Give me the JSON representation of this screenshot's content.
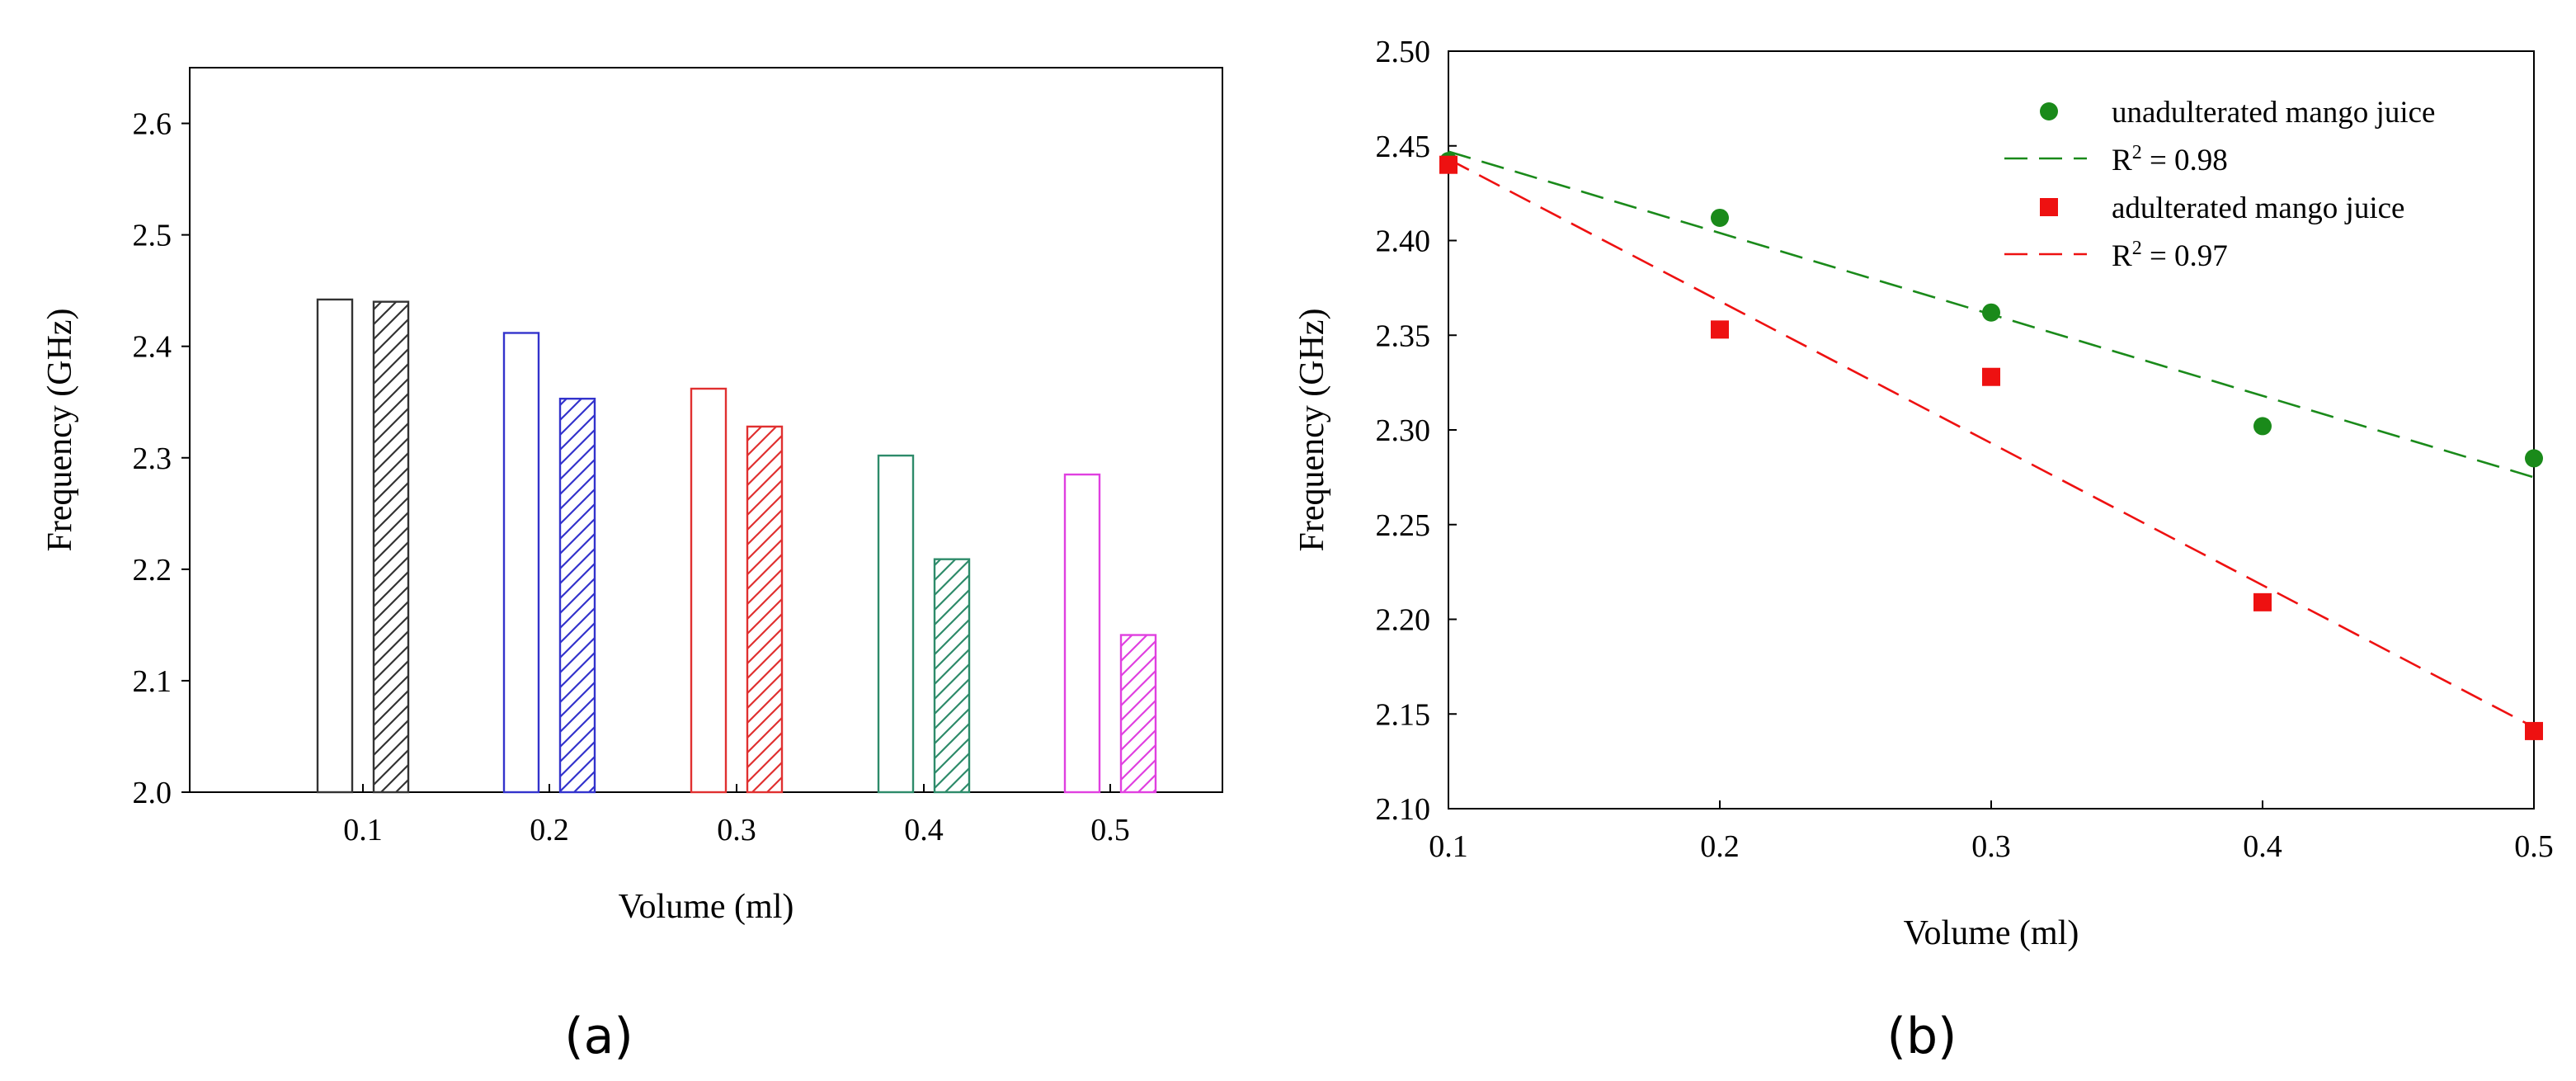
{
  "chart_data": [
    {
      "type": "bar",
      "panel_label": "(a)",
      "categories": [
        "0.1",
        "0.2",
        "0.3",
        "0.4",
        "0.5"
      ],
      "series": [
        {
          "name": "unadulterated",
          "fill": "hollow",
          "values": [
            2.442,
            2.412,
            2.362,
            2.302,
            2.285
          ]
        },
        {
          "name": "adulterated",
          "fill": "hatched",
          "values": [
            2.44,
            2.353,
            2.328,
            2.209,
            2.141
          ]
        }
      ],
      "colors": [
        "#333333",
        "#3333cc",
        "#e03030",
        "#2e8b6a",
        "#e040e0"
      ],
      "xlabel": "Volume (ml)",
      "ylabel": "Frequency (GHz)",
      "ylim": [
        2.0,
        2.65
      ],
      "yticks": [
        "2.0",
        "2.1",
        "2.2",
        "2.3",
        "2.4",
        "2.5",
        "2.6"
      ]
    },
    {
      "type": "scatter",
      "panel_label": "(b)",
      "xlabel": "Volume (ml)",
      "ylabel": "Frequency (GHz)",
      "xlim": [
        0.1,
        0.5
      ],
      "ylim": [
        2.1,
        2.5
      ],
      "xticks": [
        "0.1",
        "0.2",
        "0.3",
        "0.4",
        "0.5"
      ],
      "yticks": [
        "2.10",
        "2.15",
        "2.20",
        "2.25",
        "2.30",
        "2.35",
        "2.40",
        "2.45",
        "2.50"
      ],
      "series": [
        {
          "name": "unadulterated mango juice",
          "marker": "circle",
          "color": "#1a8a1a",
          "x": [
            0.1,
            0.2,
            0.3,
            0.4,
            0.5
          ],
          "y": [
            2.442,
            2.412,
            2.362,
            2.302,
            2.285
          ],
          "fit_label": "R",
          "fit_exp": "2",
          "fit_value": " = 0.98",
          "fit": [
            [
              0.1,
              2.447
            ],
            [
              0.5,
              2.275
            ]
          ]
        },
        {
          "name": "adulterated mango juice",
          "marker": "square",
          "color": "#ee1111",
          "x": [
            0.1,
            0.2,
            0.3,
            0.4,
            0.5
          ],
          "y": [
            2.44,
            2.353,
            2.328,
            2.209,
            2.141
          ],
          "fit_label": "R",
          "fit_exp": "2",
          "fit_value": " = 0.97",
          "fit": [
            [
              0.1,
              2.443
            ],
            [
              0.5,
              2.143
            ]
          ]
        }
      ]
    }
  ]
}
